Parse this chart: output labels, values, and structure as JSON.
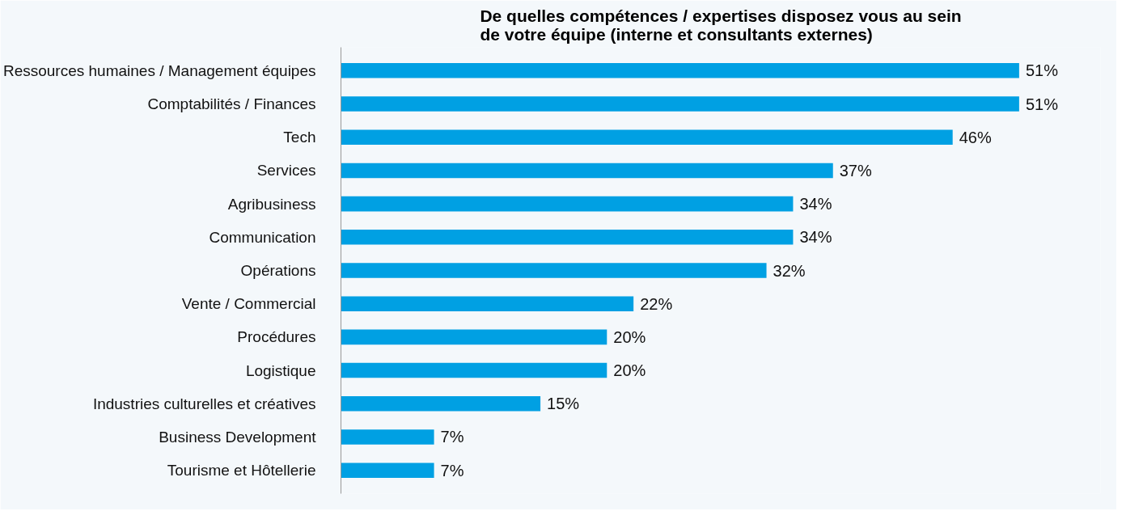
{
  "chart_data": {
    "type": "bar",
    "orientation": "horizontal",
    "title": "De quelles compétences / expertises disposez vous au sein de votre équipe (interne et consultants externes)",
    "categories": [
      "Ressources humaines / Management équipes",
      "Comptabilités / Finances",
      "Tech",
      "Services",
      "Agribusiness",
      "Communication",
      "Opérations",
      "Vente / Commercial",
      "Procédures",
      "Logistique",
      "Industries culturelles et créatives",
      "Business Development",
      "Tourisme et Hôtellerie"
    ],
    "values": [
      51,
      51,
      46,
      37,
      34,
      34,
      32,
      22,
      20,
      20,
      15,
      7,
      7
    ],
    "value_labels": [
      "51%",
      "51%",
      "46%",
      "37%",
      "34%",
      "34%",
      "32%",
      "22%",
      "20%",
      "20%",
      "15%",
      "7%",
      "7%"
    ],
    "color": "#00a0e3"
  }
}
